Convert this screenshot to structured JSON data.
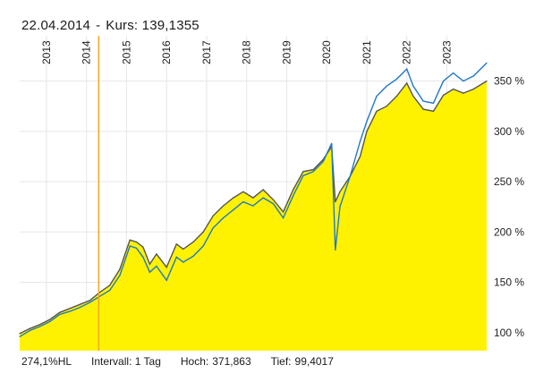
{
  "header": {
    "date": "22.04.2014",
    "separator": "-",
    "kurs_label": "Kurs:",
    "kurs_value": "139,1355"
  },
  "footer": {
    "hl": "274,1%HL",
    "intervall": "Intervall: 1 Tag",
    "hoch_label": "Hoch:",
    "hoch_value": "371,863",
    "tief_label": "Tief:",
    "tief_value": "99,4017"
  },
  "colors": {
    "area_fill": "#fff200",
    "series_dark": "#555555",
    "series_blue": "#1f78c8",
    "crosshair": "#f5a623",
    "grid": "#e6e6e6"
  },
  "chart_data": {
    "type": "area",
    "x_tick_labels": [
      "2013",
      "2014",
      "2015",
      "2016",
      "2017",
      "2018",
      "2019",
      "2020",
      "2021",
      "2022",
      "2023"
    ],
    "y_tick_labels": [
      "100 %",
      "150 %",
      "200 %",
      "250 %",
      "300 %",
      "350 %"
    ],
    "y_ticks": [
      100,
      150,
      200,
      250,
      300,
      350
    ],
    "xlim": [
      "2012-05-01",
      "2023-12-31"
    ],
    "ylim": [
      82,
      395
    ],
    "grid": true,
    "crosshair_date": "2014-04-22",
    "series": [
      {
        "style": "area",
        "x": [
          "2012-05-01",
          "2012-08-01",
          "2012-11-01",
          "2013-02-01",
          "2013-05-01",
          "2013-08-01",
          "2013-11-01",
          "2014-02-01",
          "2014-05-01",
          "2014-08-01",
          "2014-11-01",
          "2015-02-01",
          "2015-04-01",
          "2015-06-01",
          "2015-08-01",
          "2015-10-01",
          "2016-01-01",
          "2016-04-01",
          "2016-06-01",
          "2016-09-01",
          "2016-12-01",
          "2017-03-01",
          "2017-06-01",
          "2017-09-01",
          "2017-12-01",
          "2018-03-01",
          "2018-06-01",
          "2018-09-01",
          "2018-12-01",
          "2019-03-01",
          "2019-06-01",
          "2019-09-01",
          "2019-12-01",
          "2020-02-15",
          "2020-03-20",
          "2020-05-01",
          "2020-08-01",
          "2020-11-01",
          "2021-01-01",
          "2021-04-01",
          "2021-07-01",
          "2021-10-01",
          "2022-01-01",
          "2022-03-01",
          "2022-06-01",
          "2022-09-01",
          "2022-12-01",
          "2023-03-01",
          "2023-06-01",
          "2023-09-01",
          "2023-12-31"
        ],
        "values": [
          99,
          104,
          108,
          113,
          120,
          124,
          128,
          132,
          140,
          147,
          163,
          192,
          190,
          185,
          168,
          178,
          165,
          188,
          183,
          190,
          200,
          216,
          226,
          234,
          240,
          234,
          242,
          232,
          220,
          242,
          260,
          262,
          272,
          285,
          230,
          240,
          255,
          275,
          300,
          320,
          325,
          335,
          348,
          335,
          322,
          320,
          336,
          342,
          338,
          342,
          350
        ]
      },
      {
        "style": "line",
        "x": [
          "2012-05-01",
          "2012-08-01",
          "2012-11-01",
          "2013-02-01",
          "2013-05-01",
          "2013-08-01",
          "2013-11-01",
          "2014-02-01",
          "2014-05-01",
          "2014-08-01",
          "2014-11-01",
          "2015-02-01",
          "2015-04-01",
          "2015-06-01",
          "2015-08-01",
          "2015-10-01",
          "2016-01-01",
          "2016-04-01",
          "2016-06-01",
          "2016-09-01",
          "2016-12-01",
          "2017-03-01",
          "2017-06-01",
          "2017-09-01",
          "2017-12-01",
          "2018-03-01",
          "2018-06-01",
          "2018-09-01",
          "2018-12-01",
          "2019-03-01",
          "2019-06-01",
          "2019-09-01",
          "2019-12-01",
          "2020-02-15",
          "2020-03-20",
          "2020-05-01",
          "2020-08-01",
          "2020-11-01",
          "2021-01-01",
          "2021-04-01",
          "2021-07-01",
          "2021-10-01",
          "2022-01-01",
          "2022-03-01",
          "2022-06-01",
          "2022-09-01",
          "2022-12-01",
          "2023-03-01",
          "2023-06-01",
          "2023-09-01",
          "2023-12-31"
        ],
        "values": [
          96,
          102,
          106,
          111,
          118,
          121,
          125,
          130,
          136,
          142,
          157,
          186,
          184,
          175,
          160,
          166,
          152,
          175,
          170,
          176,
          186,
          204,
          214,
          222,
          230,
          226,
          234,
          228,
          214,
          236,
          256,
          260,
          270,
          288,
          182,
          225,
          255,
          290,
          310,
          335,
          345,
          352,
          362,
          345,
          330,
          328,
          350,
          358,
          350,
          355,
          368
        ]
      }
    ]
  }
}
